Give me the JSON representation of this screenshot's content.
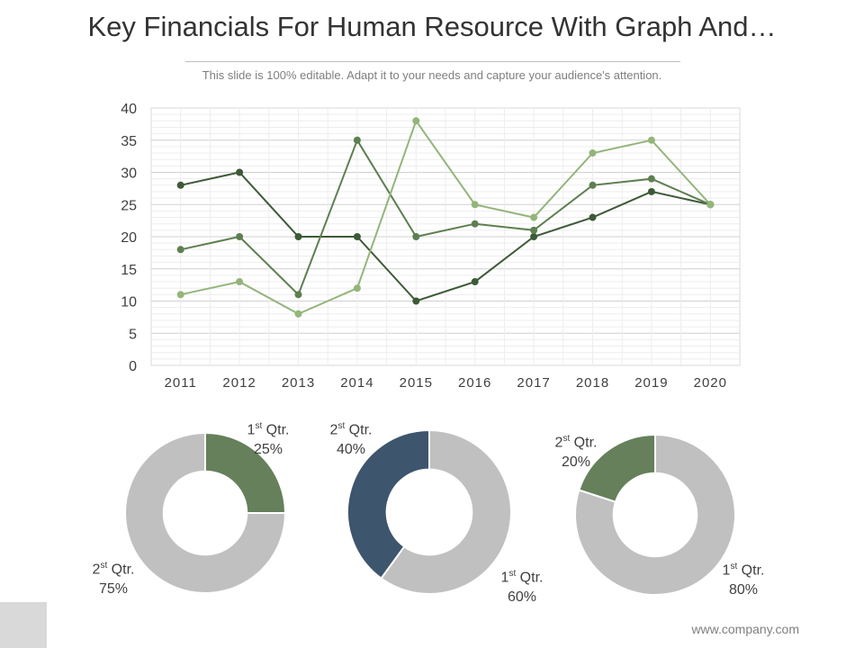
{
  "slide": {
    "title": "Key Financials For Human Resource With Graph And…",
    "subtitle": "This slide is 100% editable. Adapt it to your needs and capture your audience's attention.",
    "footer": "www.company.com"
  },
  "chart_data": [
    {
      "type": "line",
      "categories": [
        "2011",
        "2012",
        "2013",
        "2014",
        "2015",
        "2016",
        "2017",
        "2018",
        "2019",
        "2020"
      ],
      "ylim": [
        0,
        40
      ],
      "yticks": [
        0,
        5,
        10,
        15,
        20,
        25,
        30,
        35,
        40
      ],
      "grid": true,
      "series": [
        {
          "color": "#3d5a37",
          "values": [
            28,
            30,
            20,
            20,
            10,
            13,
            20,
            23,
            27,
            25
          ]
        },
        {
          "color": "#5e7f51",
          "values": [
            18,
            20,
            11,
            35,
            20,
            22,
            21,
            28,
            29,
            25
          ]
        },
        {
          "color": "#93b57a",
          "values": [
            11,
            13,
            8,
            12,
            38,
            25,
            23,
            33,
            35,
            25
          ]
        }
      ]
    },
    {
      "type": "pie",
      "donut": true,
      "slices": [
        {
          "label_num": "1",
          "label_sup": "st",
          "label_text": "Qtr.",
          "pct_label": "25%",
          "value": 25,
          "color": "#65805a"
        },
        {
          "label_num": "2",
          "label_sup": "st",
          "label_text": "Qtr.",
          "pct_label": "75%",
          "value": 75,
          "color": "#c0c0c0"
        }
      ]
    },
    {
      "type": "pie",
      "donut": true,
      "slices": [
        {
          "label_num": "1",
          "label_sup": "st",
          "label_text": "Qtr.",
          "pct_label": "60%",
          "value": 60,
          "color": "#c0c0c0"
        },
        {
          "label_num": "2",
          "label_sup": "st",
          "label_text": "Qtr.",
          "pct_label": "40%",
          "value": 40,
          "color": "#3d556d"
        }
      ]
    },
    {
      "type": "pie",
      "donut": true,
      "slices": [
        {
          "label_num": "1",
          "label_sup": "st",
          "label_text": "Qtr.",
          "pct_label": "80%",
          "value": 80,
          "color": "#c0c0c0"
        },
        {
          "label_num": "2",
          "label_sup": "st",
          "label_text": "Qtr.",
          "pct_label": "20%",
          "value": 20,
          "color": "#65805a"
        }
      ]
    }
  ]
}
